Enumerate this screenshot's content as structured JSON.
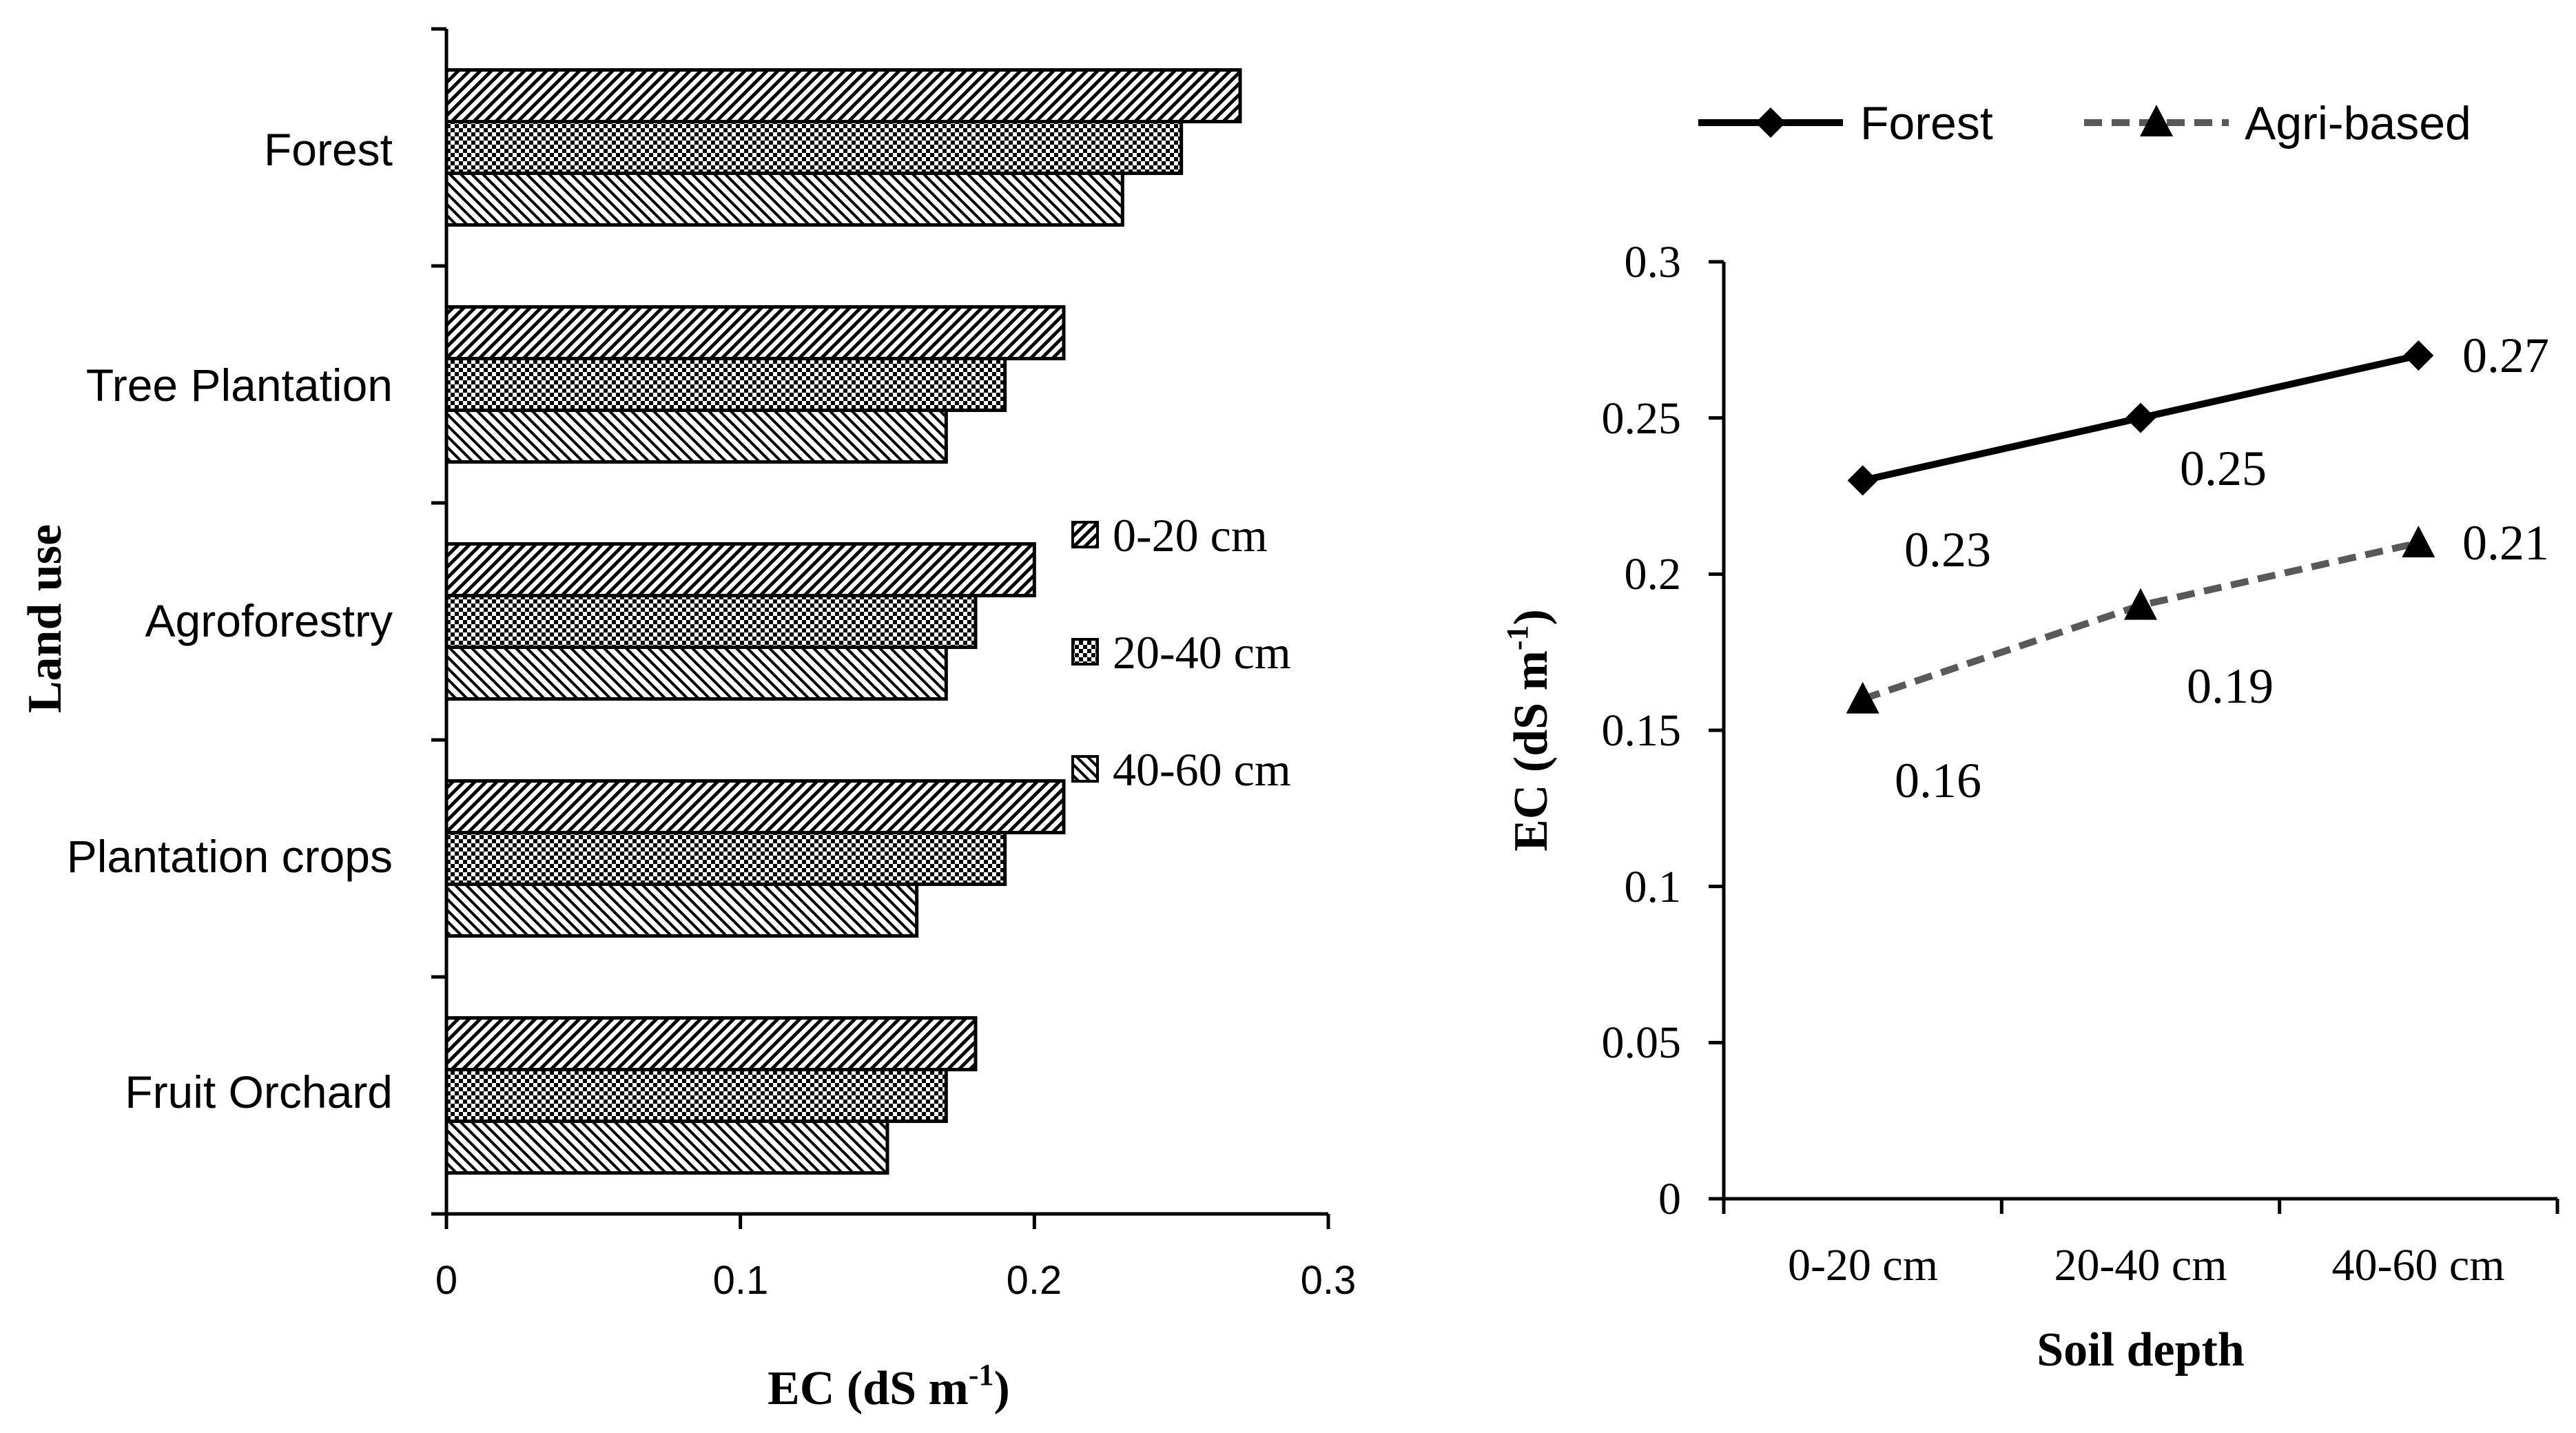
{
  "colors": {
    "ink": "#000000",
    "agri_line": "#595959",
    "background": "#ffffff"
  },
  "chart_data": [
    {
      "type": "bar",
      "orientation": "horizontal",
      "categories": [
        "Forest",
        "Tree Plantation",
        "Agroforestry",
        "Plantation crops",
        "Fruit Orchard"
      ],
      "series": [
        {
          "name": "0-20 cm",
          "pattern": "diagonal-hatch",
          "values": [
            0.27,
            0.21,
            0.2,
            0.21,
            0.18
          ]
        },
        {
          "name": "20-40 cm",
          "pattern": "checker",
          "values": [
            0.25,
            0.19,
            0.18,
            0.19,
            0.17
          ]
        },
        {
          "name": "40-60 cm",
          "pattern": "back-diagonal-hatch",
          "values": [
            0.23,
            0.17,
            0.17,
            0.16,
            0.15
          ]
        }
      ],
      "xlabel": "EC (dS m",
      "xlabel_sup": "-1",
      "xlabel_end": ")",
      "ylabel": "Land use",
      "xlim": [
        0,
        0.3
      ],
      "xticks": [
        "0",
        "0.1",
        "0.2",
        "0.3"
      ],
      "grid": false,
      "legend_position": "right-middle"
    },
    {
      "type": "line",
      "categories": [
        "0-20 cm",
        "20-40 cm",
        "40-60 cm"
      ],
      "series": [
        {
          "name": "Forest",
          "marker": "diamond",
          "style": "solid",
          "values": [
            0.23,
            0.25,
            0.27
          ],
          "labels": [
            "0.23",
            "0.25",
            "0.27"
          ]
        },
        {
          "name": "Agri-based",
          "marker": "triangle",
          "style": "dashed",
          "values": [
            0.16,
            0.19,
            0.21
          ],
          "labels": [
            "0.16",
            "0.19",
            "0.21"
          ]
        }
      ],
      "xlabel": "Soil depth",
      "ylabel": "EC (dS m",
      "ylabel_sup": "-1",
      "ylabel_end": ")",
      "ylim": [
        0,
        0.3
      ],
      "yticks": [
        "0",
        "0.05",
        "0.1",
        "0.15",
        "0.2",
        "0.25",
        "0.3"
      ],
      "grid": false,
      "legend_position": "top"
    }
  ]
}
